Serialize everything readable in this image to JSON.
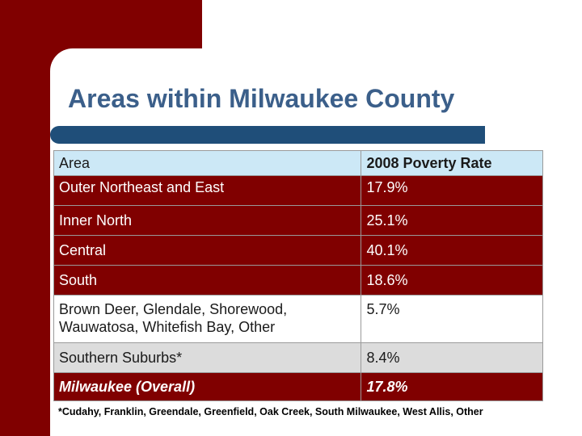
{
  "slide": {
    "title": "Areas within Milwaukee County",
    "footnote": "*Cudahy, Franklin, Greendale, Greenfield, Oak Creek, South Milwaukee, West Allis, Other"
  },
  "table": {
    "headers": [
      "Area",
      "2008 Poverty Rate"
    ],
    "rows": [
      [
        "Outer Northeast and East",
        "17.9%"
      ],
      [
        "Inner North",
        "25.1%"
      ],
      [
        "Central",
        "40.1%"
      ],
      [
        "South",
        "18.6%"
      ],
      [
        "Brown Deer, Glendale, Shorewood, Wauwatosa, Whitefish Bay, Other",
        "5.7%"
      ],
      [
        "Southern Suburbs*",
        "8.4%"
      ],
      [
        "Milwaukee (Overall)",
        "17.8%"
      ]
    ]
  },
  "colors": {
    "maroon": "#800000",
    "title_blue": "#3b5f8a",
    "bar_blue": "#1f4e79",
    "header_blue": "#cce8f6",
    "gray_row": "#dcdcdc"
  }
}
